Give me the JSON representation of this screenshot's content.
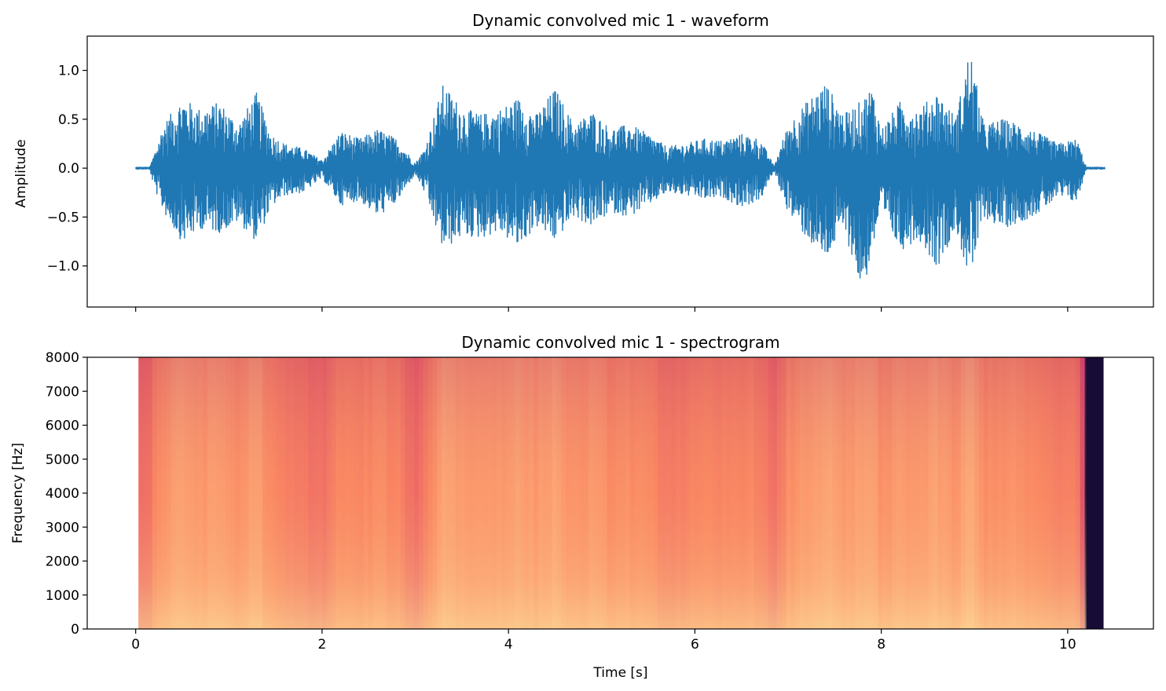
{
  "chart_data": [
    {
      "type": "line",
      "title": "Dynamic convolved mic 1 - waveform",
      "xlabel": "",
      "ylabel": "Amplitude",
      "xlim": [
        -0.52,
        10.92
      ],
      "ylim": [
        -1.42,
        1.35
      ],
      "x_ticks": [
        0,
        2,
        4,
        6,
        8,
        10
      ],
      "x_tick_labels_shown": false,
      "y_ticks": [
        -1.0,
        -0.5,
        0.0,
        0.5,
        1.0
      ],
      "y_tick_labels": [
        "−1.0",
        "−0.5",
        "0.0",
        "0.5",
        "1.0"
      ],
      "grid": false,
      "color": "#1f77b4",
      "envelope": {
        "x": [
          0.0,
          0.15,
          0.2,
          0.3,
          0.5,
          0.7,
          0.9,
          1.1,
          1.3,
          1.45,
          1.6,
          1.8,
          2.0,
          2.2,
          2.4,
          2.6,
          2.8,
          3.0,
          3.1,
          3.3,
          3.5,
          3.7,
          3.9,
          4.1,
          4.3,
          4.5,
          4.7,
          4.9,
          5.1,
          5.3,
          5.5,
          5.7,
          5.9,
          6.1,
          6.3,
          6.5,
          6.7,
          6.85,
          7.0,
          7.2,
          7.4,
          7.6,
          7.8,
          7.9,
          8.0,
          8.2,
          8.4,
          8.6,
          8.8,
          8.95,
          9.1,
          9.3,
          9.5,
          9.7,
          9.9,
          10.1,
          10.2,
          10.4
        ],
        "upper": [
          0.01,
          0.01,
          0.15,
          0.45,
          0.72,
          0.6,
          0.68,
          0.45,
          0.78,
          0.35,
          0.25,
          0.2,
          0.08,
          0.38,
          0.3,
          0.4,
          0.3,
          0.05,
          0.2,
          0.86,
          0.62,
          0.55,
          0.6,
          0.72,
          0.55,
          0.82,
          0.45,
          0.58,
          0.4,
          0.45,
          0.35,
          0.22,
          0.25,
          0.3,
          0.28,
          0.35,
          0.3,
          0.02,
          0.45,
          0.68,
          0.88,
          0.55,
          0.7,
          0.85,
          0.4,
          0.68,
          0.6,
          0.78,
          0.52,
          1.23,
          0.45,
          0.5,
          0.45,
          0.35,
          0.25,
          0.3,
          0.01,
          0.01
        ],
        "lower": [
          -0.01,
          -0.01,
          -0.2,
          -0.45,
          -0.76,
          -0.62,
          -0.66,
          -0.55,
          -0.76,
          -0.4,
          -0.28,
          -0.25,
          -0.1,
          -0.38,
          -0.33,
          -0.5,
          -0.35,
          -0.06,
          -0.25,
          -0.85,
          -0.7,
          -0.72,
          -0.65,
          -0.82,
          -0.6,
          -0.75,
          -0.5,
          -0.6,
          -0.45,
          -0.5,
          -0.38,
          -0.25,
          -0.28,
          -0.32,
          -0.3,
          -0.4,
          -0.33,
          -0.03,
          -0.45,
          -0.72,
          -0.95,
          -0.62,
          -1.3,
          -0.86,
          -0.45,
          -0.85,
          -0.72,
          -1.02,
          -0.62,
          -1.18,
          -0.5,
          -0.62,
          -0.55,
          -0.45,
          -0.3,
          -0.35,
          -0.01,
          -0.01
        ]
      }
    },
    {
      "type": "heatmap",
      "title": "Dynamic convolved mic 1 - spectrogram",
      "xlabel": "Time [s]",
      "ylabel": "Frequency [Hz]",
      "xlim": [
        -0.52,
        10.92
      ],
      "ylim": [
        0,
        8000
      ],
      "x_ticks": [
        0,
        2,
        4,
        6,
        8,
        10
      ],
      "x_tick_labels": [
        "0",
        "2",
        "4",
        "6",
        "8",
        "10"
      ],
      "y_ticks": [
        0,
        1000,
        2000,
        3000,
        4000,
        5000,
        6000,
        7000,
        8000
      ],
      "y_tick_labels": [
        "0",
        "1000",
        "2000",
        "3000",
        "4000",
        "5000",
        "6000",
        "7000",
        "8000"
      ],
      "grid": false,
      "colormap": "magma",
      "time_range": [
        0.03,
        10.38
      ],
      "freq_range": [
        0,
        8000
      ],
      "time_points": [
        0.03,
        0.15,
        0.2,
        0.3,
        0.5,
        0.7,
        0.9,
        1.1,
        1.3,
        1.45,
        1.6,
        1.8,
        2.0,
        2.2,
        2.4,
        2.6,
        2.8,
        3.0,
        3.1,
        3.3,
        3.5,
        3.7,
        3.9,
        4.1,
        4.3,
        4.5,
        4.7,
        4.9,
        5.1,
        5.3,
        5.5,
        5.7,
        5.9,
        6.1,
        6.3,
        6.5,
        6.7,
        6.85,
        7.0,
        7.2,
        7.4,
        7.6,
        7.8,
        7.9,
        8.0,
        8.2,
        8.4,
        8.6,
        8.8,
        8.95,
        9.1,
        9.3,
        9.5,
        9.7,
        9.9,
        10.1,
        10.2,
        10.38
      ],
      "relative_energy": [
        0.55,
        0.55,
        0.7,
        0.8,
        0.9,
        0.84,
        0.88,
        0.78,
        0.92,
        0.72,
        0.66,
        0.62,
        0.56,
        0.74,
        0.7,
        0.76,
        0.7,
        0.52,
        0.62,
        0.95,
        0.86,
        0.84,
        0.86,
        0.9,
        0.84,
        0.93,
        0.78,
        0.84,
        0.76,
        0.78,
        0.73,
        0.65,
        0.67,
        0.7,
        0.69,
        0.73,
        0.7,
        0.52,
        0.77,
        0.86,
        0.94,
        0.83,
        0.9,
        0.93,
        0.76,
        0.88,
        0.84,
        0.91,
        0.8,
        0.98,
        0.77,
        0.8,
        0.78,
        0.72,
        0.65,
        0.68,
        0.05,
        0.05
      ]
    }
  ]
}
